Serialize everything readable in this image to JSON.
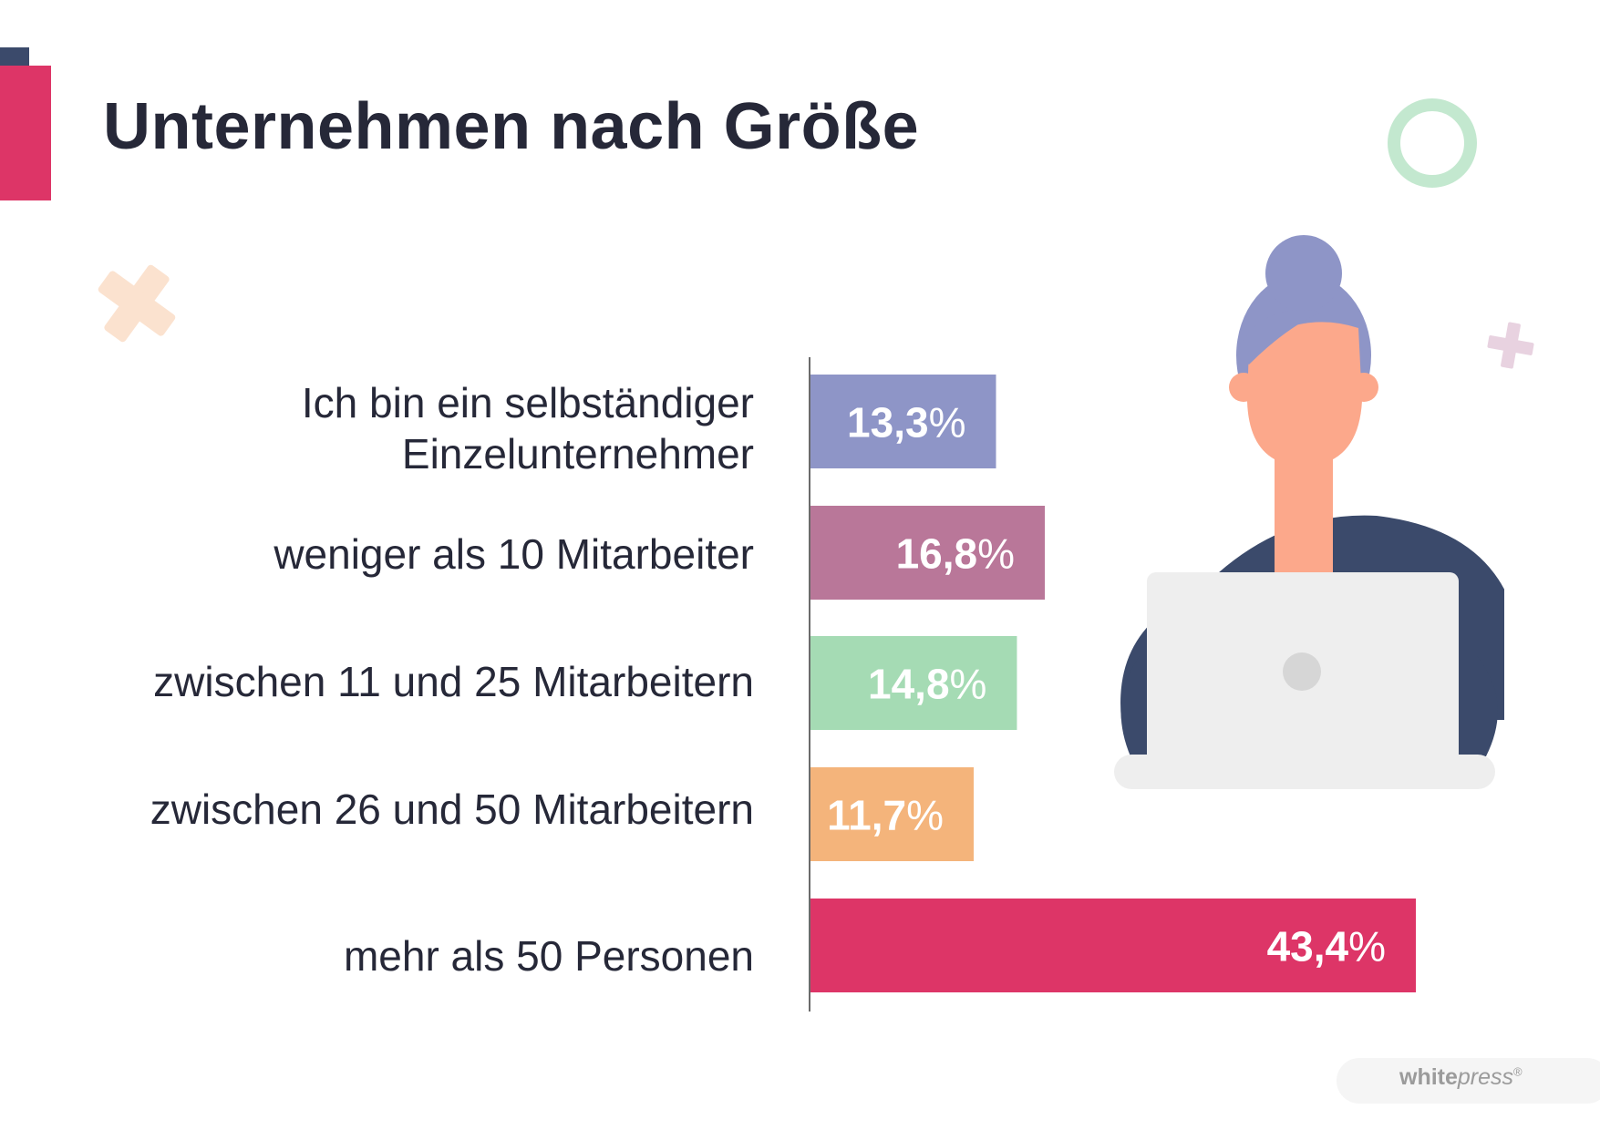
{
  "title": "Unternehmen nach Größe",
  "chart_data": {
    "type": "bar",
    "orientation": "horizontal",
    "title": "Unternehmen nach Größe",
    "categories": [
      "Ich bin ein selbständiger Einzelunternehmer",
      "weniger als 10 Mitarbeiter",
      "zwischen 11 und 25 Mitarbeitern",
      "zwischen 26 und 50 Mitarbeitern",
      "mehr als 50 Personen"
    ],
    "category_lines": [
      [
        "Ich bin ein selbständiger",
        "Einzelunternehmer"
      ],
      [
        "weniger als 10 Mitarbeiter"
      ],
      [
        "zwischen 11 und 25 Mitarbeitern"
      ],
      [
        "zwischen 26 und 50 Mitarbeitern"
      ],
      [
        "mehr als 50 Personen"
      ]
    ],
    "values": [
      13.3,
      16.8,
      14.8,
      11.7,
      43.4
    ],
    "value_labels": [
      "13,3%",
      "16,8%",
      "14,8%",
      "11,7%",
      "43,4%"
    ],
    "unit": "%",
    "colors": [
      "#8e95c7",
      "#b97799",
      "#a5dbb4",
      "#f4b47b",
      "#dd3567"
    ],
    "xlabel": "",
    "ylabel": "",
    "grid": false,
    "legend": "none"
  },
  "logo": {
    "part1": "white",
    "part2": "press",
    "mark": "®"
  },
  "colors": {
    "title": "#262838",
    "accent_red": "#dd3567",
    "accent_dark": "#3b4a6b",
    "person_hair": "#8e95c7",
    "person_skin": "#fca88b",
    "person_shirt": "#3b4a6b",
    "laptop": "#eeeeee"
  }
}
